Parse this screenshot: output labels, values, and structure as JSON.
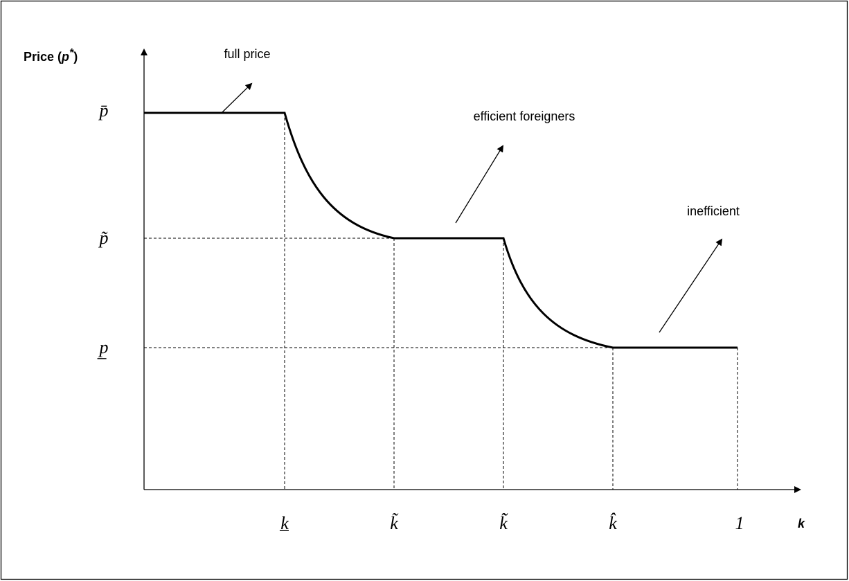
{
  "y_axis_label": {
    "text": "Price (",
    "symbol": "p",
    "star": "*",
    "close": ")"
  },
  "x_axis_label": "k",
  "price_levels": [
    "p̄",
    "p̃",
    "p̲"
  ],
  "k_levels": [
    "k̲",
    "k̃",
    "k̃̃",
    "k̂",
    "1"
  ],
  "annotations": [
    "full price",
    "efficient foreigners",
    "inefficient"
  ]
}
